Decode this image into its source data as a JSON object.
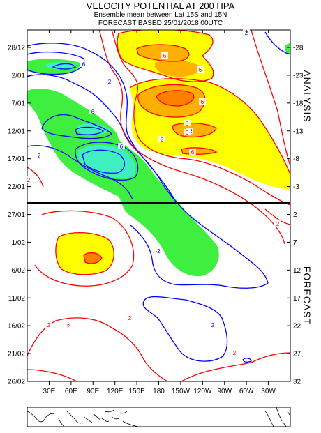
{
  "header": {
    "title": "VELOCITY POTENTIAL AT 200 HPA",
    "subtitle": "Ensemble mean between  Lat 15S and 15N",
    "forecast_line": "FORECAST  BASED 25/01/2018 00UTC"
  },
  "side_labels": {
    "analysis": "ANALYSIS",
    "forecast": "FORECAST"
  },
  "colors": {
    "neg_fill_light": "#3fef3f",
    "neg_fill_dark": "#3fefbf",
    "pos_fill_light": "#ffff00",
    "pos_fill_dark": "#ffb000",
    "pos_fill_darker": "#ff8000",
    "neg_contour": "#0000ff",
    "pos_contour": "#ff0000",
    "divider": "#000000"
  },
  "chart_data": {
    "type": "hovmoller",
    "x_ticks": [
      "30E",
      "60E",
      "90E",
      "120E",
      "150E",
      "180",
      "150W",
      "120W",
      "90W",
      "60W",
      "30W"
    ],
    "y_left_ticks": [
      "28/12",
      "2/01",
      "7/01",
      "12/01",
      "17/01",
      "22/01",
      "27/01",
      "1/02",
      "6/02",
      "11/02",
      "16/02",
      "21/02",
      "26/02"
    ],
    "y_right_ticks": [
      "-28",
      "-23",
      "-18",
      "-13",
      "-8",
      "-3",
      "2",
      "7",
      "12",
      "17",
      "22",
      "27",
      "32"
    ],
    "contour_labels": [
      "2",
      "6",
      "2",
      "6",
      "6",
      "2",
      "6",
      "6",
      "-2",
      "6",
      "6",
      "6",
      "2",
      "2",
      "-2",
      "2",
      "6",
      "2",
      "2",
      "2",
      "2",
      "2"
    ],
    "contour_interval": 4,
    "forecast_base": "25/01/2018 00UTC"
  }
}
